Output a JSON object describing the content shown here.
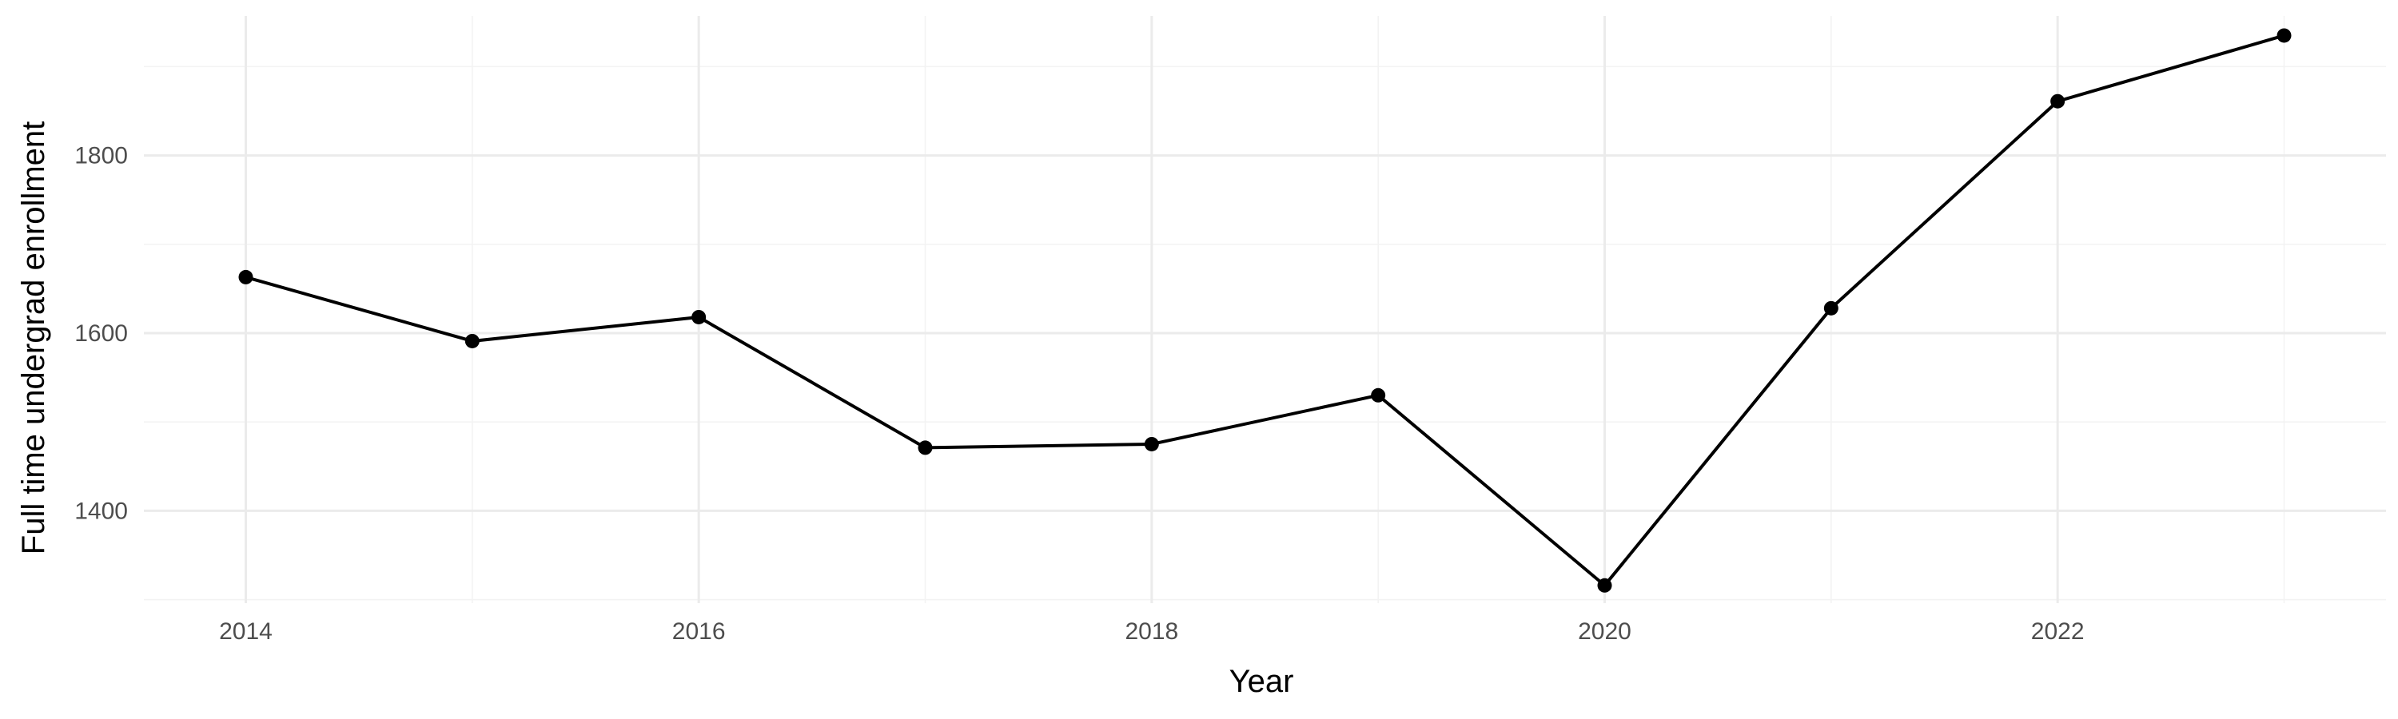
{
  "chart_data": {
    "type": "line",
    "title": "",
    "xlabel": "Year",
    "ylabel": "Full time undergrad enrollment",
    "x": [
      2014,
      2015,
      2016,
      2017,
      2018,
      2019,
      2020,
      2021,
      2022,
      2023
    ],
    "series": [
      {
        "values": [
          1663,
          1591,
          1618,
          1471,
          1475,
          1530,
          1316,
          1628,
          1861,
          1935
        ]
      }
    ],
    "xlim": [
      2013.55,
      2023.45
    ],
    "ylim": [
      1296,
      1957
    ],
    "x_ticks": [
      2014,
      2016,
      2018,
      2020,
      2022
    ],
    "x_tick_labels": [
      "2014",
      "2016",
      "2018",
      "2020",
      "2022"
    ],
    "y_ticks": [
      1400,
      1600,
      1800
    ],
    "y_tick_labels": [
      "1400",
      "1600",
      "1800"
    ],
    "grid": true,
    "legend": "none",
    "line_color": "#000000",
    "grid_color": "#ebebeb",
    "background": "#ffffff"
  }
}
